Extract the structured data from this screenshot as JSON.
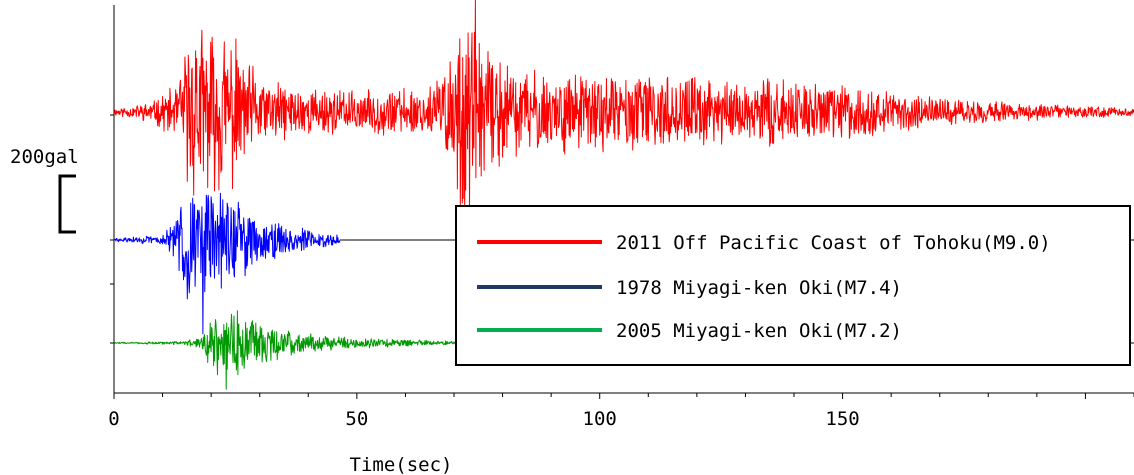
{
  "chart_data": {
    "type": "line",
    "title": "",
    "xlabel": "Time(sec)",
    "ylabel": "",
    "xlim": [
      0,
      210
    ],
    "x_ticks": [
      0,
      50,
      100,
      150
    ],
    "x_tick_labels": [
      "0",
      "50",
      "100",
      "150"
    ],
    "grid": false,
    "legend_position": "bottom-right",
    "scale_bar": {
      "label": "200gal",
      "value": 200,
      "unit": "gal"
    },
    "series": [
      {
        "name": "2011 Off Pacific Coast of Tohoku(M9.0)",
        "color": "#ff0000",
        "duration_sec": 210,
        "peak_positive_gal": 415,
        "peak_negative_gal": -345,
        "envelope_gal": [
          [
            0,
            10
          ],
          [
            8,
            30
          ],
          [
            13,
            80
          ],
          [
            15,
            200
          ],
          [
            17,
            280
          ],
          [
            19,
            220
          ],
          [
            22,
            240
          ],
          [
            24,
            230
          ],
          [
            27,
            150
          ],
          [
            32,
            90
          ],
          [
            40,
            70
          ],
          [
            50,
            60
          ],
          [
            60,
            70
          ],
          [
            65,
            80
          ],
          [
            68,
            130
          ],
          [
            70,
            200
          ],
          [
            72,
            360
          ],
          [
            74,
            240
          ],
          [
            78,
            160
          ],
          [
            85,
            120
          ],
          [
            100,
            110
          ],
          [
            120,
            100
          ],
          [
            140,
            90
          ],
          [
            152,
            80
          ],
          [
            160,
            55
          ],
          [
            175,
            35
          ],
          [
            190,
            22
          ],
          [
            210,
            12
          ]
        ]
      },
      {
        "name": "1978 Miyagi-ken Oki(M7.4)",
        "color": "#0000ff",
        "duration_sec": 46.5,
        "peak_positive_gal": 160,
        "peak_negative_gal": -335,
        "envelope_gal": [
          [
            0,
            5
          ],
          [
            10,
            15
          ],
          [
            13,
            60
          ],
          [
            15,
            200
          ],
          [
            17,
            180
          ],
          [
            20,
            150
          ],
          [
            24,
            140
          ],
          [
            27,
            100
          ],
          [
            31,
            60
          ],
          [
            38,
            35
          ],
          [
            46.5,
            15
          ]
        ]
      },
      {
        "name": "2005 Miyagi-ken Oki(M7.2)",
        "color": "#009900",
        "duration_sec": 70,
        "peak_positive_gal": 115,
        "peak_negative_gal": -165,
        "envelope_gal": [
          [
            0,
            2
          ],
          [
            14,
            5
          ],
          [
            18,
            20
          ],
          [
            20,
            100
          ],
          [
            22,
            110
          ],
          [
            25,
            90
          ],
          [
            28,
            80
          ],
          [
            31,
            60
          ],
          [
            36,
            35
          ],
          [
            45,
            20
          ],
          [
            55,
            12
          ],
          [
            70,
            5
          ]
        ]
      }
    ],
    "legend_colors": [
      "#ff0000",
      "#1f3864",
      "#00b050"
    ]
  }
}
